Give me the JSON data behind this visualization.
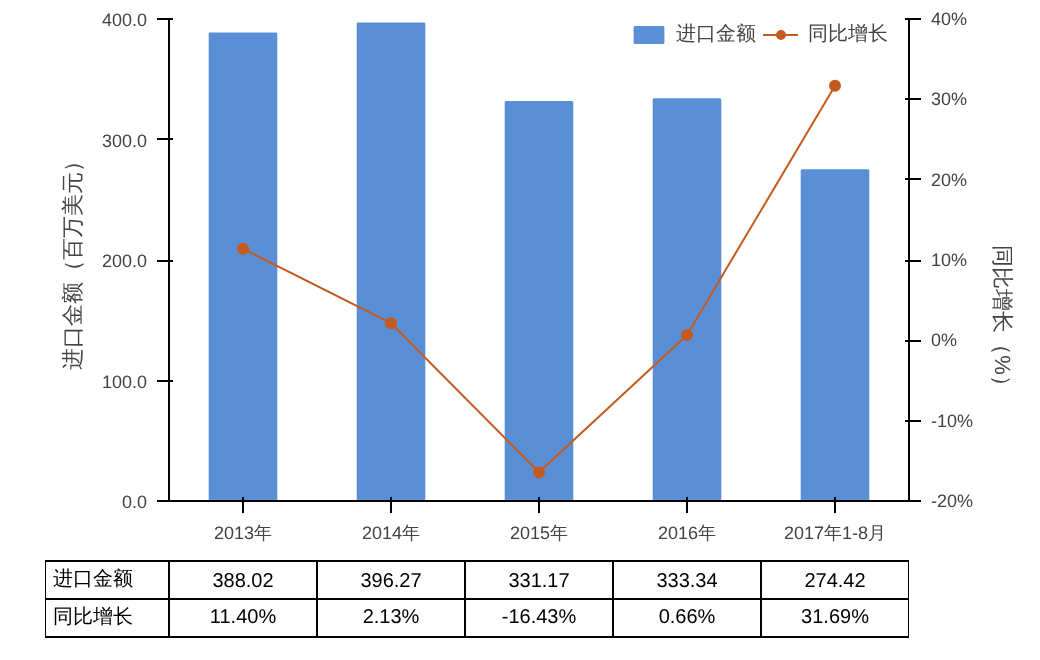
{
  "chart_data": {
    "type": "bar",
    "ylabel": "进口金额（百万美元）",
    "y2label": "同比增长（%）",
    "categories": [
      "2013年",
      "2014年",
      "2015年",
      "2016年",
      "2017年1-8月"
    ],
    "series": [
      {
        "name": "进口金额",
        "color": "#5a8fd6",
        "values": [
          388.02,
          396.27,
          331.17,
          333.34,
          274.42
        ],
        "value_labels": [
          "388.02",
          "396.27",
          "331.17",
          "333.34",
          "274.42"
        ]
      },
      {
        "name": "同比增长",
        "type": "line",
        "axis": "y2",
        "color": "#c55a1e",
        "marker": "circle",
        "values": [
          11.4,
          2.13,
          -16.43,
          0.66,
          31.69
        ],
        "value_labels": [
          "11.40%",
          "2.13%",
          "-16.43%",
          "0.66%",
          "31.69%"
        ]
      }
    ],
    "ylim": [
      0,
      400
    ],
    "yticks": [
      {
        "value": 0,
        "label": "0.0"
      },
      {
        "value": 100,
        "label": "100.0"
      },
      {
        "value": 200,
        "label": "200.0"
      },
      {
        "value": 300,
        "label": "300.0"
      },
      {
        "value": 400,
        "label": "400.0"
      }
    ],
    "y2lim": [
      -20,
      40
    ],
    "y2ticks": [
      {
        "value": -20,
        "label": "-20%"
      },
      {
        "value": -10,
        "label": "-10%"
      },
      {
        "value": 0,
        "label": "0%"
      },
      {
        "value": 10,
        "label": "10%"
      },
      {
        "value": 20,
        "label": "20%"
      },
      {
        "value": 30,
        "label": "30%"
      },
      {
        "value": 40,
        "label": "40%"
      }
    ],
    "legend": "top right",
    "data_labels": true
  }
}
